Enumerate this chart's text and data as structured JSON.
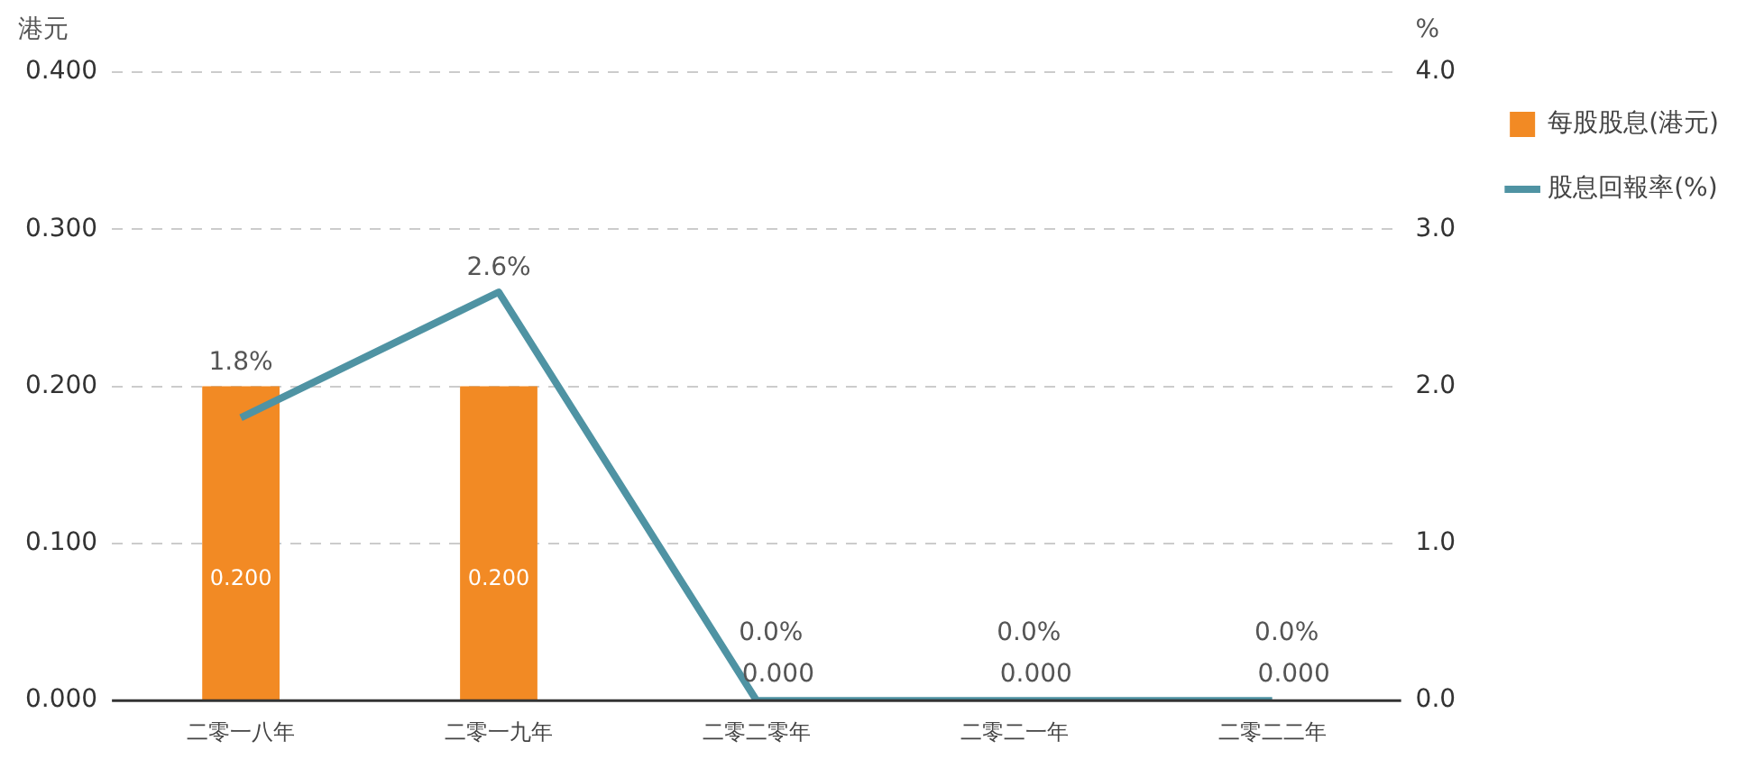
{
  "chart_data": {
    "type": "bar",
    "categories": [
      "二零一八年",
      "二零一九年",
      "二零二零年",
      "二零二一年",
      "二零二二年"
    ],
    "ylabel": "港元",
    "y2label": "%",
    "series": [
      {
        "name": "每股股息(港元)",
        "color": "#f28a24",
        "values": [
          0.2,
          0.2,
          0,
          0,
          0
        ],
        "value_labels": [
          "0.200",
          "0.200",
          "0.000",
          "0.000",
          "0.000"
        ]
      },
      {
        "name": "股息回報率(%)",
        "type": "line",
        "axis": "y2",
        "color": "#4f93a3",
        "values": [
          1.8,
          2.6,
          0,
          0,
          0
        ],
        "value_labels": [
          "1.8%",
          "2.6%",
          "0.0%",
          "0.0%",
          "0.0%"
        ]
      }
    ],
    "ylim": [
      0,
      0.4
    ],
    "yticks": [
      {
        "value": 0,
        "label": "0.000"
      },
      {
        "value": 0.1,
        "label": "0.100"
      },
      {
        "value": 0.2,
        "label": "0.200"
      },
      {
        "value": 0.3,
        "label": "0.300"
      },
      {
        "value": 0.4,
        "label": "0.400"
      }
    ],
    "y2lim": [
      0,
      4
    ],
    "y2ticks": [
      {
        "value": 0,
        "label": "0.0"
      },
      {
        "value": 1,
        "label": "1.0"
      },
      {
        "value": 2,
        "label": "2.0"
      },
      {
        "value": 3,
        "label": "3.0"
      },
      {
        "value": 4,
        "label": "4.0"
      }
    ],
    "grid": "y",
    "legend": "top right",
    "marker": "none",
    "line_style": "solid"
  }
}
